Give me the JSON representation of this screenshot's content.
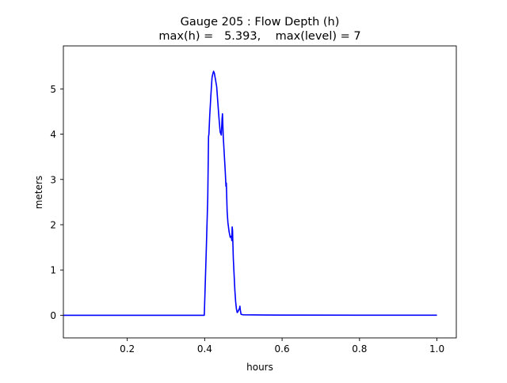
{
  "chart_data": {
    "type": "line",
    "title_line1": "Gauge 205 : Flow Depth (h)",
    "title_line2": "max(h) =   5.393,    max(level) = 7",
    "xlabel": "hours",
    "ylabel": "meters",
    "xlim": [
      0.035,
      1.05
    ],
    "ylim": [
      -0.5,
      5.95
    ],
    "xticks": [
      0.2,
      0.4,
      0.6,
      0.8,
      1.0
    ],
    "xtick_labels": [
      "0.2",
      "0.4",
      "0.6",
      "0.8",
      "1.0"
    ],
    "yticks": [
      0,
      1,
      2,
      3,
      4,
      5
    ],
    "ytick_labels": [
      "0",
      "1",
      "2",
      "3",
      "4",
      "5"
    ],
    "grid": false,
    "series": [
      {
        "color": "#0000ff",
        "x": [
          0.035,
          0.2,
          0.399,
          0.401,
          0.404,
          0.408,
          0.41,
          0.411,
          0.413,
          0.416,
          0.419,
          0.421,
          0.423,
          0.425,
          0.428,
          0.431,
          0.434,
          0.437,
          0.44,
          0.443,
          0.445,
          0.446,
          0.448,
          0.449,
          0.451,
          0.453,
          0.455,
          0.456,
          0.457,
          0.458,
          0.46,
          0.463,
          0.466,
          0.469,
          0.47,
          0.471,
          0.472,
          0.473,
          0.474,
          0.476,
          0.478,
          0.48,
          0.482,
          0.484,
          0.486,
          0.488,
          0.49,
          0.491,
          0.492,
          0.494,
          0.5,
          0.55,
          0.6,
          0.8,
          1.0
        ],
        "y": [
          0.0,
          0.0,
          0.0,
          0.55,
          1.4,
          2.6,
          3.95,
          4.0,
          4.4,
          4.85,
          5.25,
          5.33,
          5.39,
          5.35,
          5.2,
          5.05,
          4.7,
          4.35,
          4.05,
          3.98,
          4.35,
          4.45,
          3.95,
          3.8,
          3.5,
          3.2,
          2.85,
          2.92,
          2.6,
          2.3,
          2.05,
          1.85,
          1.72,
          1.75,
          1.65,
          1.95,
          1.88,
          1.55,
          1.25,
          0.9,
          0.55,
          0.3,
          0.14,
          0.06,
          0.08,
          0.12,
          0.15,
          0.2,
          0.12,
          0.02,
          0.01,
          0.005,
          0.003,
          0.002,
          0.002
        ]
      }
    ]
  }
}
